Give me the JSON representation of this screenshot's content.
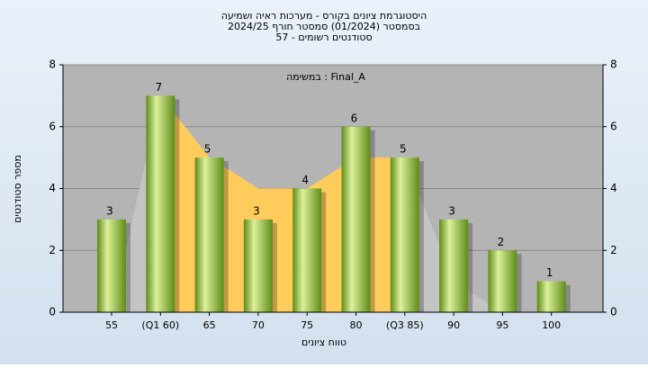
{
  "chart_data": {
    "type": "bar",
    "title": [
      "היסטוגרמת ציונים בקורס - מערכות ראיה ושמיעה",
      "בסמסטר  (01/2024)  סמסטר חורף 2024/25",
      "סטודנטים רשומים - 57"
    ],
    "annotation": "במשימה : Final_A",
    "x_label": "טווח ציונים",
    "y_label": "מספר סטודנטים",
    "categories": [
      "55",
      "(Q1 60)",
      "65",
      "70",
      "75",
      "80",
      "(Q3 85)",
      "90",
      "95",
      "100"
    ],
    "values": [
      3,
      7,
      5,
      3,
      4,
      6,
      5,
      3,
      2,
      1
    ],
    "color_light": "#dcf09a",
    "color_dark": "#5e8c18",
    "area": {
      "values": [
        0,
        7,
        5,
        4,
        4,
        5,
        5,
        1,
        0,
        0
      ],
      "color": "#ffcc5c",
      "outer_color": "#c4c4c4",
      "highlight": [
        "(Q1 60)",
        "(Q3 85)"
      ]
    },
    "ylim": [
      0,
      8
    ],
    "yticks": [
      0,
      2,
      4,
      6,
      8
    ],
    "y2lim": [
      0,
      8
    ],
    "y2ticks": [
      0,
      2,
      4,
      6,
      8
    ]
  }
}
